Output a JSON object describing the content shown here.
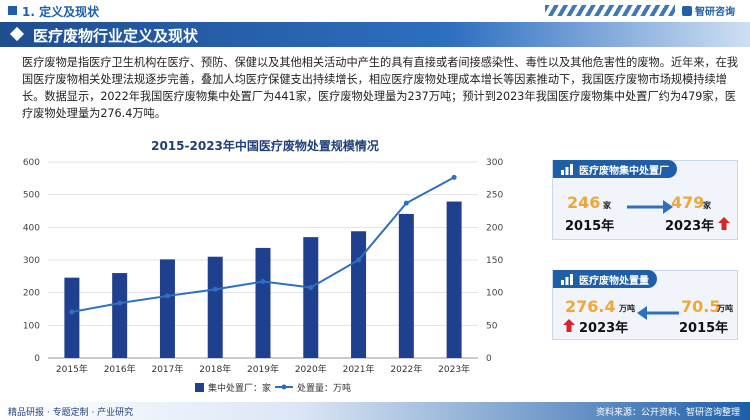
{
  "header": {
    "section": "1. 定义及现状",
    "brand": "智研咨询"
  },
  "title": "医疗废物行业定义及现状",
  "paragraph": "医疗废物是指医疗卫生机构在医疗、预防、保健以及其他相关活动中产生的具有直接或者间接感染性、毒性以及其他危害性的废物。近年来，在我国医疗废物相关处理法规逐步完善，叠加人均医疗保健支出持续增长，相应医疗废物处理成本增长等因素推动下，我国医疗废物市场规模持续增长。数据显示，2022年我国医疗废物集中处置厂为441家，医疗废物处理量为237万吨；预计到2023年我国医疗废物集中处置厂约为479家，医疗废物处理量为276.4万吨。",
  "chart_data": {
    "type": "bar+line",
    "title": "2015-2023年中国医疗废物处置规模情况",
    "categories": [
      "2015年",
      "2016年",
      "2017年",
      "2018年",
      "2019年",
      "2020年",
      "2021年",
      "2022年",
      "2023年"
    ],
    "series": [
      {
        "name": "集中处置厂：家",
        "type": "bar",
        "axis": "left",
        "color": "#1f3f8f",
        "values": [
          246,
          260,
          302,
          310,
          337,
          370,
          388,
          441,
          479
        ]
      },
      {
        "name": "处置量：万吨",
        "type": "line",
        "axis": "right",
        "color": "#2f6fbf",
        "values": [
          70.5,
          84,
          95,
          105,
          117,
          108,
          150,
          237,
          276.4
        ]
      }
    ],
    "left_axis": {
      "ylim": [
        0,
        600
      ],
      "ticks": [
        "0",
        "100",
        "200",
        "300",
        "400",
        "500",
        "600"
      ]
    },
    "right_axis": {
      "ylim": [
        0,
        300
      ],
      "ticks": [
        "0",
        "50",
        "100",
        "150",
        "200",
        "250",
        "300"
      ]
    },
    "grid": true,
    "legend_position": "bottom"
  },
  "cards": [
    {
      "title": "医疗废物集中处置厂",
      "from": {
        "value": "246",
        "unit": "家",
        "year": "2015年"
      },
      "to": {
        "value": "479",
        "unit": "家",
        "year": "2023年"
      }
    },
    {
      "title": "医疗废物处置量",
      "from": {
        "value": "276.4",
        "unit": "万吨",
        "year": "2023年"
      },
      "to": {
        "value": "70.5",
        "unit": "万吨",
        "year": "2015年"
      }
    }
  ],
  "footer": {
    "left": "精品研报 · 专题定制 · 产业研究",
    "right": "资料来源：公开资料、智研咨询整理"
  },
  "colors": {
    "primary": "#1f5fa8",
    "bar": "#1f3f8f",
    "line": "#2f6fbf",
    "accent_orange": "#f0a73a",
    "arrow_up": "#d9232a"
  }
}
